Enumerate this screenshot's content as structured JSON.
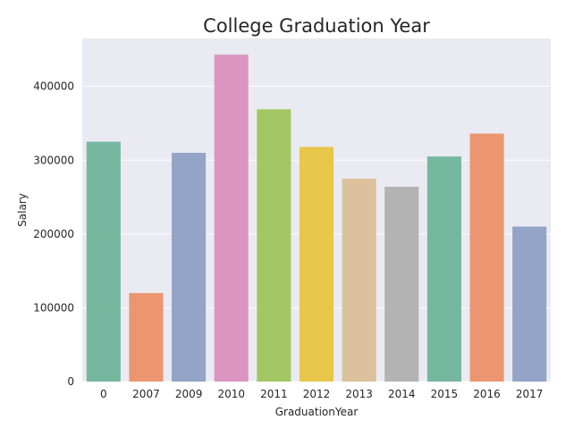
{
  "chart_data": {
    "type": "bar",
    "title": "College Graduation Year",
    "xlabel": "GraduationYear",
    "ylabel": "Salary",
    "categories": [
      "0",
      "2007",
      "2009",
      "2010",
      "2011",
      "2012",
      "2013",
      "2014",
      "2015",
      "2016",
      "2017"
    ],
    "values": [
      325000,
      120000,
      310000,
      443000,
      369000,
      318000,
      275000,
      264000,
      305000,
      336000,
      210000
    ],
    "ylim": [
      0,
      465000
    ],
    "yticks": [
      0,
      100000,
      200000,
      300000,
      400000
    ],
    "ytick_labels": [
      "0",
      "100000",
      "200000",
      "300000",
      "400000"
    ],
    "grid": true,
    "background": "#eaeaf2",
    "colors": [
      "#76b7a0",
      "#eb9670",
      "#94a4c6",
      "#dc95c1",
      "#a3c762",
      "#e8c64a",
      "#dbc29c",
      "#b3b3b3",
      "#76b7a0",
      "#eb9670",
      "#94a4c6"
    ]
  }
}
